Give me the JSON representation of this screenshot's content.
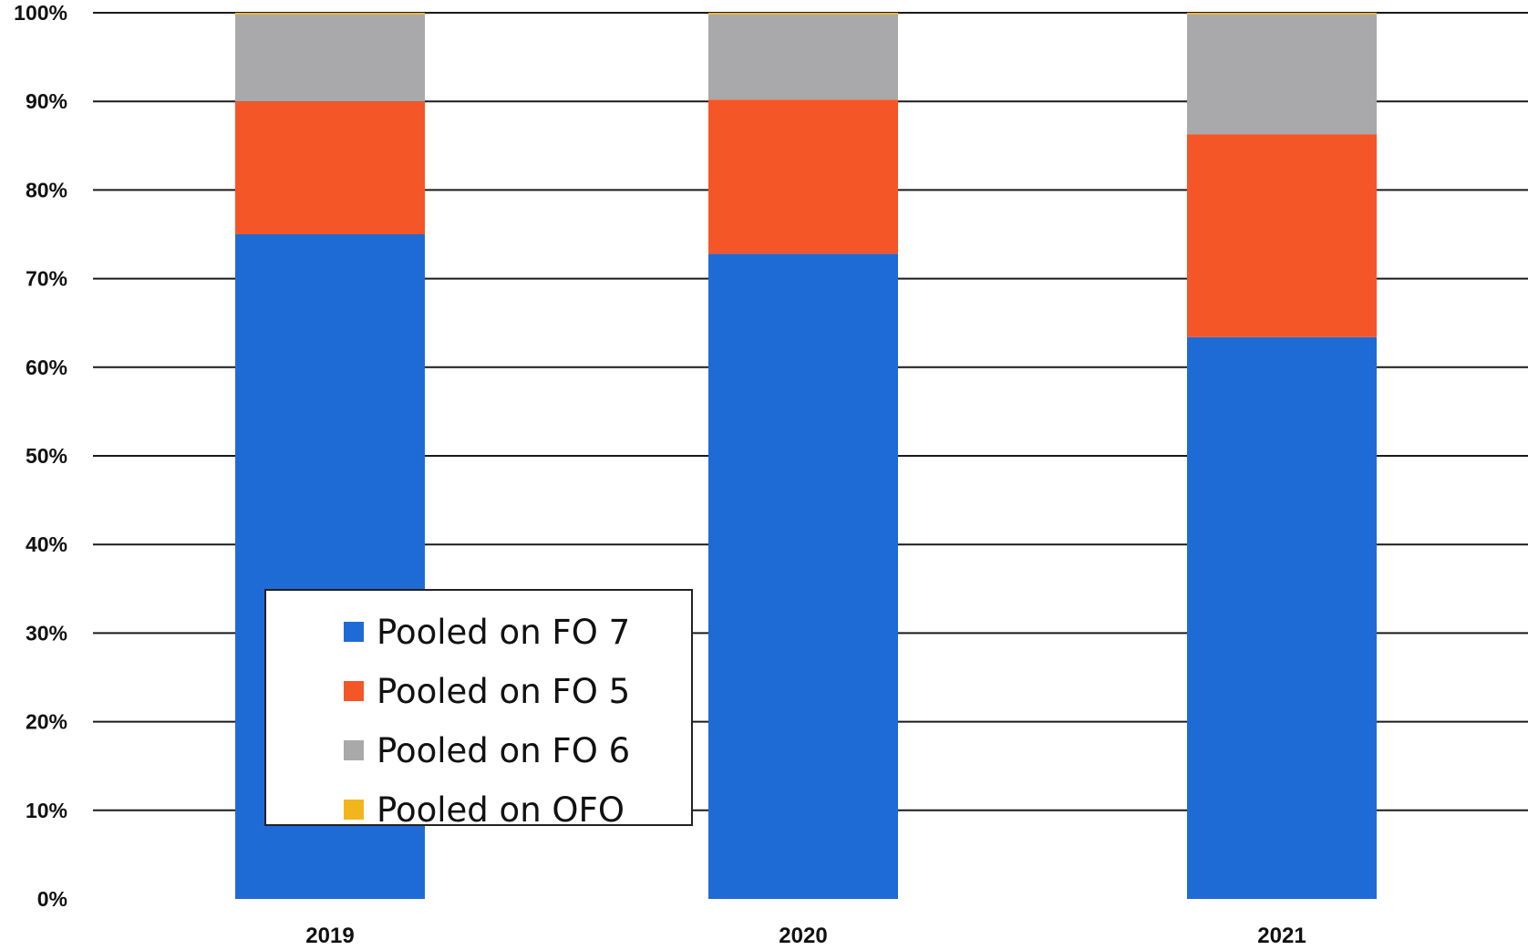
{
  "chart_data": {
    "type": "bar",
    "stacked": true,
    "categories": [
      "2019",
      "2020",
      "2021"
    ],
    "series": [
      {
        "name": "Pooled on FO 7",
        "color": "#1f6bd6",
        "values": [
          75,
          72.8,
          63.4
        ]
      },
      {
        "name": "Pooled on FO 5",
        "color": "#f45628",
        "values": [
          15,
          17.4,
          22.9
        ]
      },
      {
        "name": "Pooled on FO 6",
        "color": "#a9a8ab",
        "values": [
          9.8,
          9.6,
          13.5
        ]
      },
      {
        "name": "Pooled on OFO",
        "color": "#f2b61c",
        "values": [
          0.2,
          0.2,
          0.2
        ]
      }
    ],
    "yticks": [
      "0%",
      "10%",
      "20%",
      "30%",
      "40%",
      "50%",
      "60%",
      "70%",
      "80%",
      "90%",
      "100%"
    ],
    "ylim": [
      0,
      100
    ],
    "title": "",
    "xlabel": "",
    "ylabel": "",
    "grid": true,
    "legend_position": "bottom-left"
  }
}
